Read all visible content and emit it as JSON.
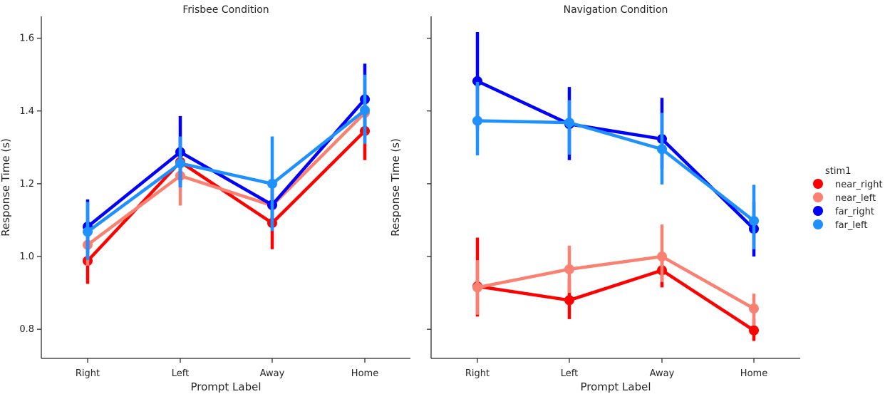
{
  "chart_data": {
    "type": "line",
    "categories": [
      "Right",
      "Left",
      "Away",
      "Home"
    ],
    "xlabel": "Prompt Label",
    "ylabel": "Response Time (s)",
    "ylim": [
      0.72,
      1.66
    ],
    "yticks": [
      0.8,
      1.0,
      1.2,
      1.4,
      1.6
    ],
    "ytick_labels": [
      "0.8",
      "1.0",
      "1.2",
      "1.4",
      "1.6"
    ],
    "grid": false,
    "legend": {
      "title": "stim1",
      "placement": "right",
      "entries": [
        {
          "name": "near_right",
          "color": "#ff0000"
        },
        {
          "name": "near_left",
          "color": "#fa8072"
        },
        {
          "name": "far_right",
          "color": "#0000ff"
        },
        {
          "name": "far_left",
          "color": "#1e90ff"
        }
      ]
    },
    "panels": [
      {
        "title": "Frisbee Condition",
        "series": [
          {
            "name": "near_right",
            "values": [
              0.988,
              1.26,
              1.092,
              1.345
            ],
            "ci_low": [
              0.925,
              1.2,
              1.02,
              1.265
            ],
            "ci_high": [
              1.05,
              1.33,
              1.17,
              1.42
            ]
          },
          {
            "name": "near_left",
            "values": [
              1.032,
              1.222,
              1.14,
              1.395
            ],
            "ci_low": [
              0.975,
              1.14,
              1.09,
              1.33
            ],
            "ci_high": [
              1.09,
              1.3,
              1.2,
              1.45
            ]
          },
          {
            "name": "far_right",
            "values": [
              1.082,
              1.287,
              1.142,
              1.432
            ],
            "ci_low": [
              1.01,
              1.19,
              1.08,
              1.34
            ],
            "ci_high": [
              1.157,
              1.386,
              1.2,
              1.53
            ]
          },
          {
            "name": "far_left",
            "values": [
              1.068,
              1.256,
              1.2,
              1.402
            ],
            "ci_low": [
              0.99,
              1.19,
              1.07,
              1.31
            ],
            "ci_high": [
              1.15,
              1.33,
              1.33,
              1.5
            ]
          }
        ]
      },
      {
        "title": "Navigation Condition",
        "series": [
          {
            "name": "near_right",
            "values": [
              0.918,
              0.88,
              0.962,
              0.797
            ],
            "ci_low": [
              0.835,
              0.828,
              0.915,
              0.768
            ],
            "ci_high": [
              1.052,
              0.94,
              1.01,
              0.83
            ]
          },
          {
            "name": "near_left",
            "values": [
              0.915,
              0.965,
              1.0,
              0.857
            ],
            "ci_low": [
              0.84,
              0.9,
              0.93,
              0.81
            ],
            "ci_high": [
              0.99,
              1.03,
              1.088,
              0.898
            ]
          },
          {
            "name": "far_right",
            "values": [
              1.482,
              1.364,
              1.323,
              1.076
            ],
            "ci_low": [
              1.35,
              1.265,
              1.24,
              1.0
            ],
            "ci_high": [
              1.617,
              1.466,
              1.436,
              1.15
            ]
          },
          {
            "name": "far_left",
            "values": [
              1.373,
              1.368,
              1.295,
              1.098
            ],
            "ci_low": [
              1.278,
              1.28,
              1.198,
              1.02
            ],
            "ci_high": [
              1.48,
              1.43,
              1.395,
              1.197
            ]
          }
        ]
      }
    ]
  }
}
